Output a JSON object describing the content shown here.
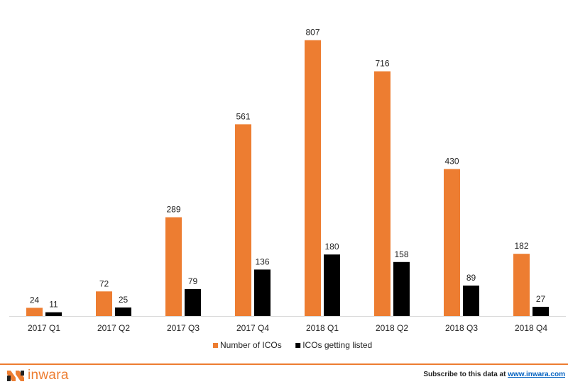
{
  "chart_data": {
    "type": "bar",
    "categories": [
      "2017 Q1",
      "2017 Q2",
      "2017 Q3",
      "2017 Q4",
      "2018 Q1",
      "2018 Q2",
      "2018 Q3",
      "2018 Q4"
    ],
    "series": [
      {
        "name": "Number of ICOs",
        "color": "#ed7d31",
        "values": [
          24,
          72,
          289,
          561,
          807,
          716,
          430,
          182
        ]
      },
      {
        "name": "ICOs getting listed",
        "color": "#000000",
        "values": [
          11,
          25,
          79,
          136,
          180,
          158,
          89,
          27
        ]
      }
    ],
    "ylim": [
      0,
      850
    ],
    "grid": false,
    "legend_placement": "bottom-center",
    "data_labels": true
  },
  "footer": {
    "logo_text": "inwara",
    "subscribe_text": "Subscribe to this data at ",
    "subscribe_link": "www.inwara.com"
  },
  "colors": {
    "accent": "#ed7d31",
    "link": "#0563c1"
  }
}
